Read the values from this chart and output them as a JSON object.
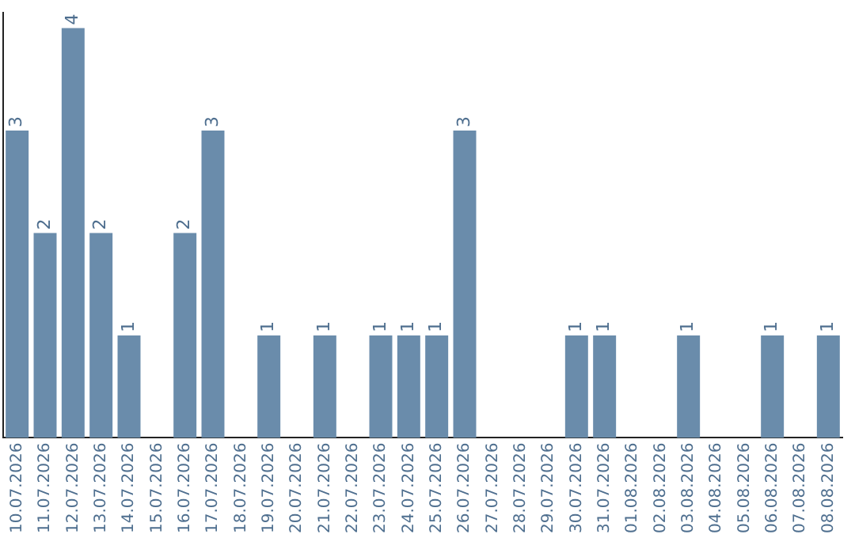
{
  "chart_data": {
    "type": "bar",
    "categories": [
      "10.07.2026",
      "11.07.2026",
      "12.07.2026",
      "13.07.2026",
      "14.07.2026",
      "15.07.2026",
      "16.07.2026",
      "17.07.2026",
      "18.07.2026",
      "19.07.2026",
      "20.07.2026",
      "21.07.2026",
      "22.07.2026",
      "23.07.2026",
      "24.07.2026",
      "25.07.2026",
      "26.07.2026",
      "27.07.2026",
      "28.07.2026",
      "29.07.2026",
      "30.07.2026",
      "31.07.2026",
      "01.08.2026",
      "02.08.2026",
      "03.08.2026",
      "04.08.2026",
      "05.08.2026",
      "06.08.2026",
      "07.08.2026",
      "08.08.2026"
    ],
    "values": [
      3,
      2,
      4,
      2,
      1,
      0,
      2,
      3,
      0,
      1,
      0,
      1,
      0,
      1,
      1,
      1,
      3,
      0,
      0,
      0,
      1,
      1,
      0,
      0,
      1,
      0,
      0,
      1,
      0,
      1
    ],
    "value_labels": [
      "3",
      "2",
      "4",
      "2",
      "1",
      null,
      "2",
      "3",
      null,
      "1",
      null,
      "1",
      null,
      "1",
      "1",
      "1",
      "3",
      null,
      null,
      null,
      "1",
      "1",
      null,
      null,
      "1",
      null,
      null,
      "1",
      null,
      "1"
    ],
    "color": "#6a8cab",
    "ylim": [
      0,
      4.15
    ],
    "tick_labels": "x",
    "grid": false,
    "legend": false
  }
}
